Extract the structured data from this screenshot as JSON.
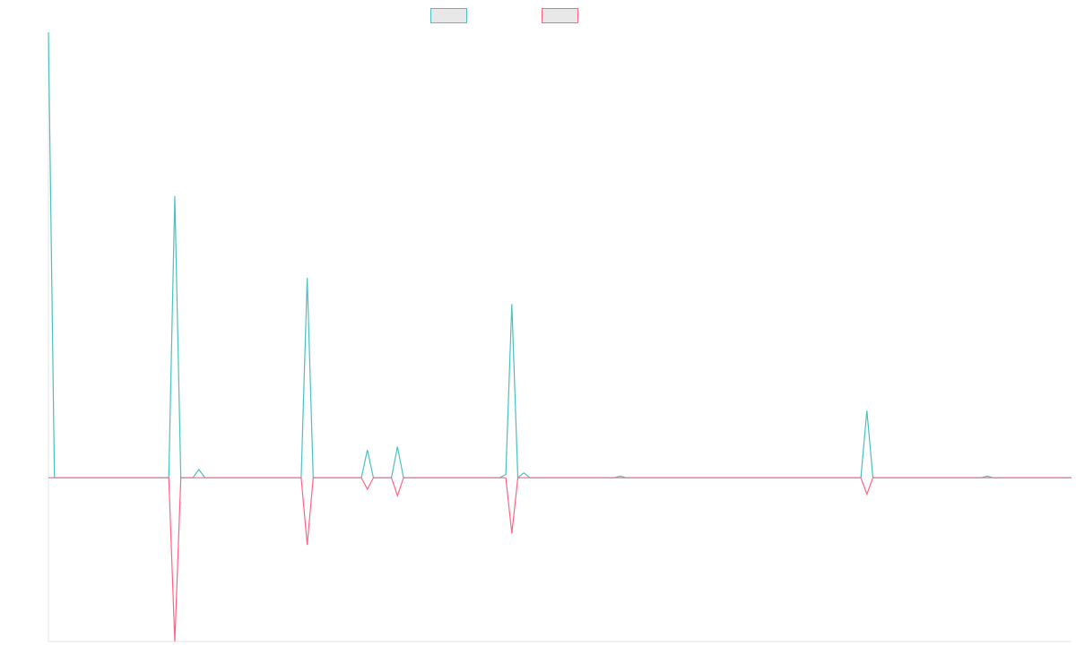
{
  "chart_data": {
    "type": "line",
    "title": "",
    "xlabel": "",
    "ylabel": "",
    "legend_placement": "top-center",
    "grid": false,
    "colors": {
      "series_a": "#4bc0c0",
      "series_b": "#ff6384",
      "legend_fill": "#e8e8e8",
      "axis": "#e6e6e6",
      "background": "#ffffff"
    },
    "x": [
      0,
      1,
      20,
      21,
      22,
      24,
      25,
      26,
      42,
      43,
      44,
      52,
      53,
      54,
      57,
      58,
      59,
      75,
      76,
      77,
      78,
      79,
      80,
      94,
      95,
      96,
      120,
      135,
      136,
      137,
      155,
      156,
      157,
      170
    ],
    "ylim": [
      -50,
      136
    ],
    "series": [
      {
        "name": "",
        "values": [
          136,
          0,
          0,
          86,
          0,
          0,
          2.5,
          0,
          0,
          61,
          0,
          0,
          8.5,
          0,
          0,
          9.5,
          0,
          0,
          1,
          53,
          0,
          1.5,
          0,
          0,
          0.5,
          0,
          0,
          0,
          20.5,
          0,
          0,
          0.5,
          0,
          0
        ]
      },
      {
        "name": "",
        "values": [
          0,
          0,
          0,
          -50,
          0,
          0,
          0,
          0,
          0,
          -20.5,
          0,
          0,
          -3.5,
          0,
          0,
          -5.5,
          0,
          0,
          0,
          -17,
          0,
          0,
          0,
          0,
          0,
          0,
          0,
          0,
          -5,
          0,
          0,
          0,
          0,
          0
        ]
      }
    ],
    "x_range": [
      0,
      170
    ]
  }
}
